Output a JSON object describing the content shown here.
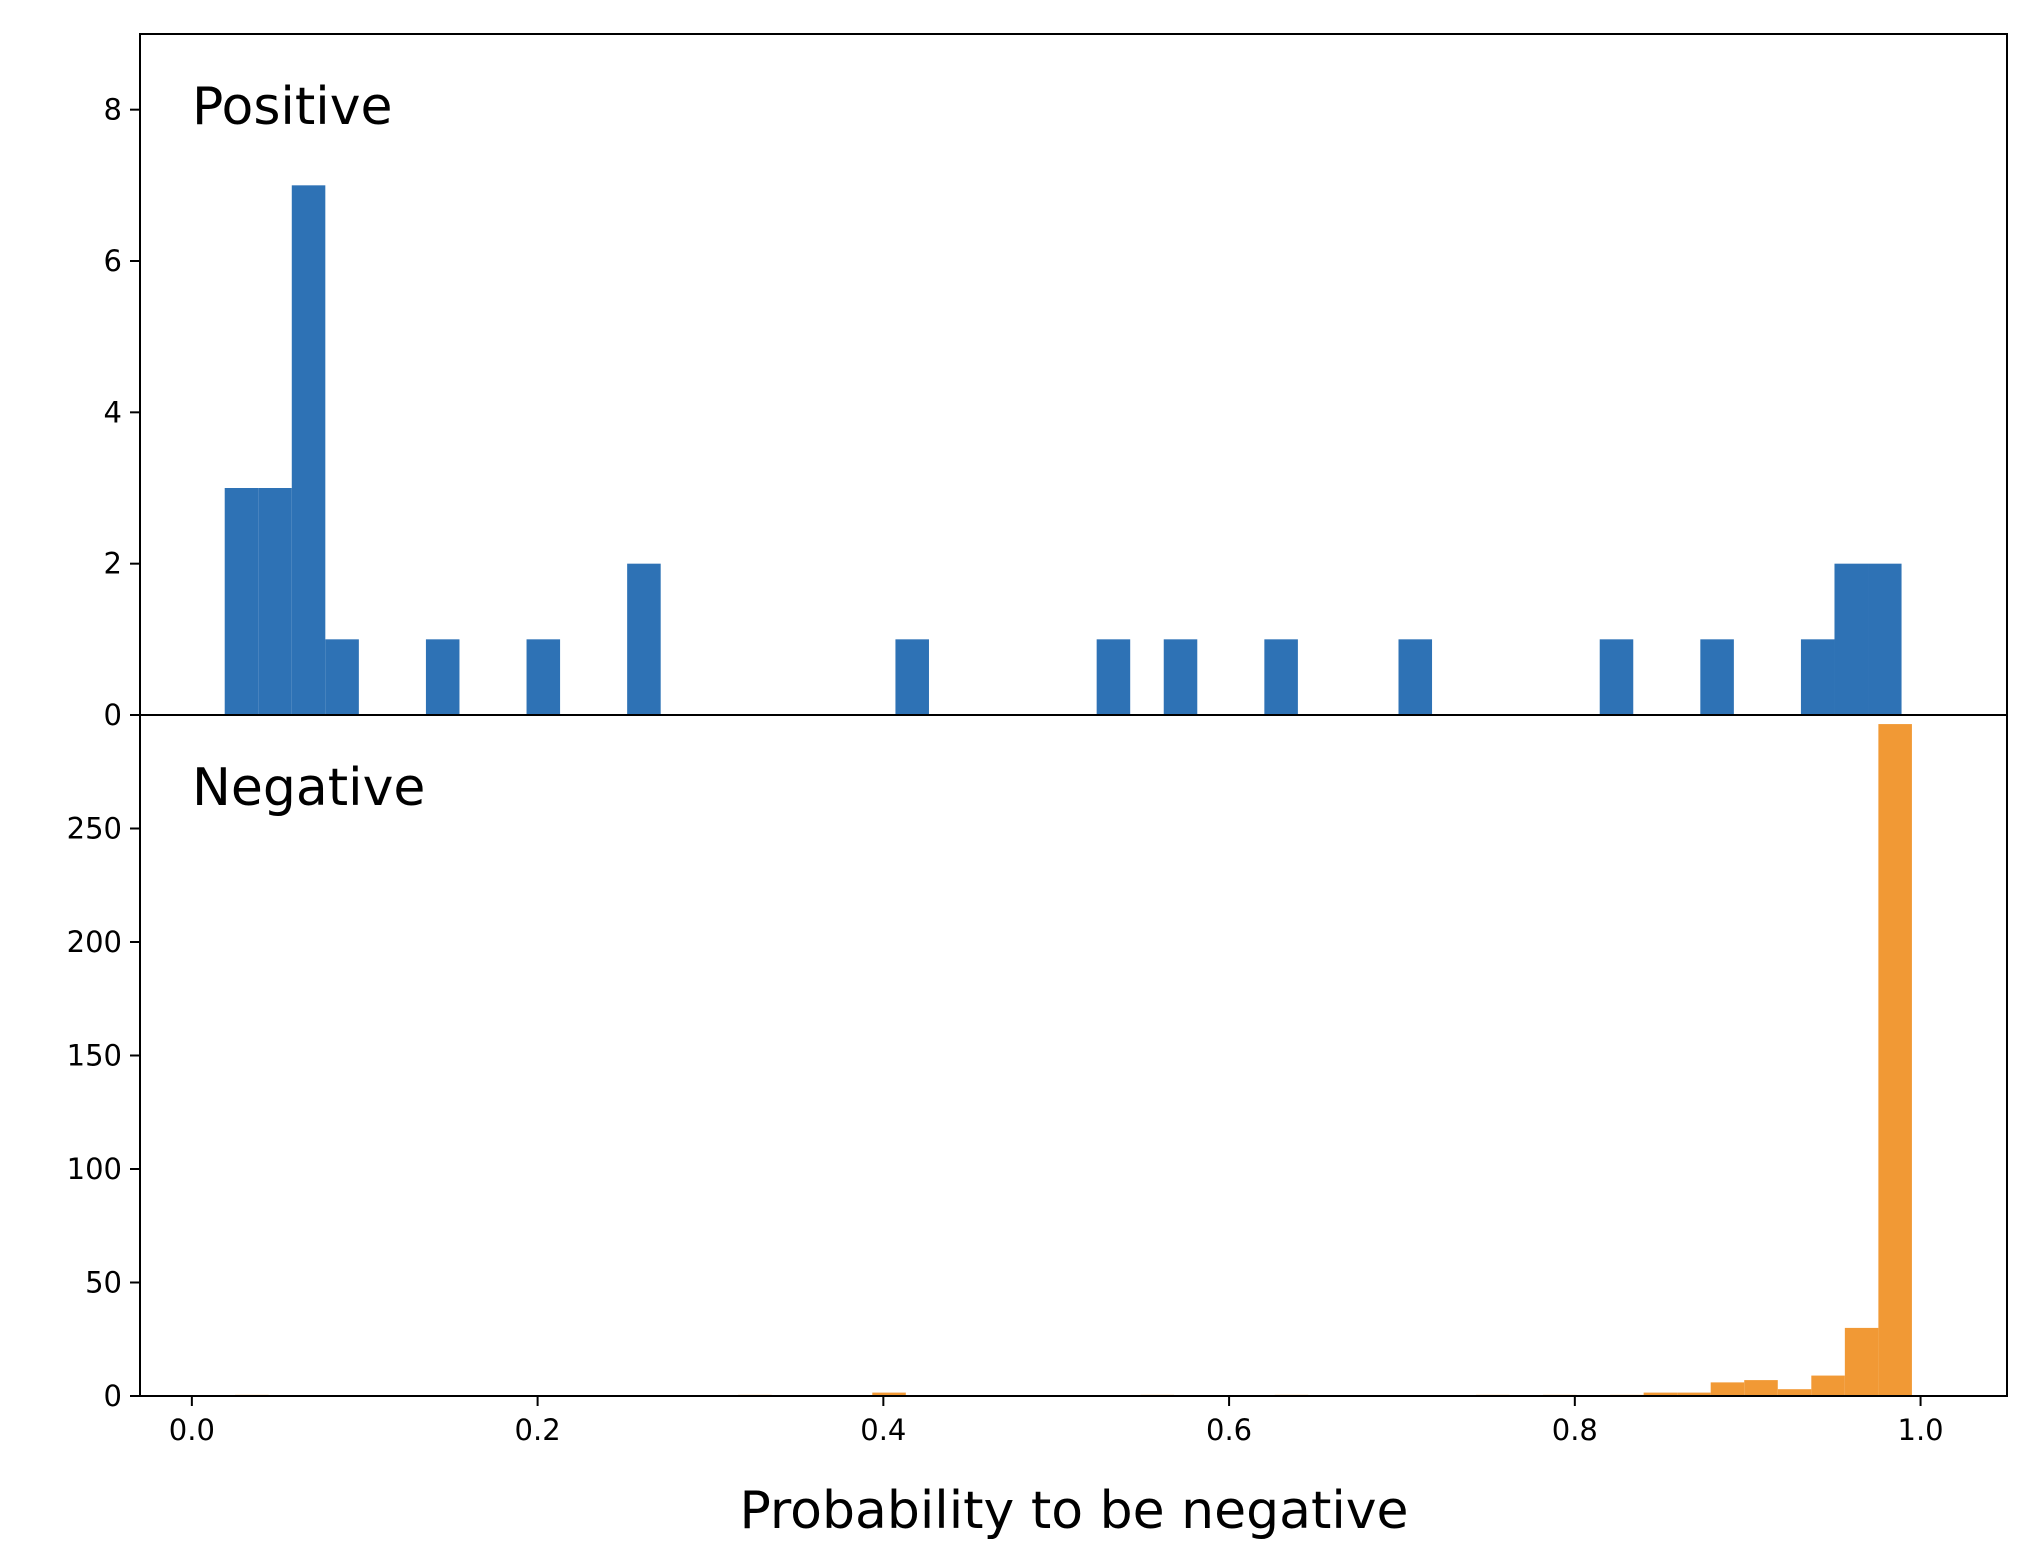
{
  "chart_data": {
    "type": "bar",
    "subtype": "histogram",
    "xlabel": "Probability to be negative",
    "xlim": [
      -0.03,
      1.05
    ],
    "x_ticks": [
      "0.0",
      "0.2",
      "0.4",
      "0.6",
      "0.8",
      "1.0"
    ],
    "bin_width": 0.0194,
    "panels": [
      {
        "label": "Positive",
        "color": "#2e72b5",
        "ylim": [
          0,
          9
        ],
        "y_ticks": [
          "0",
          "2",
          "4",
          "6",
          "8"
        ],
        "bins": [
          {
            "x0": 0.019,
            "value": 3
          },
          {
            "x0": 0.0384,
            "value": 3
          },
          {
            "x0": 0.0578,
            "value": 7
          },
          {
            "x0": 0.0772,
            "value": 1
          },
          {
            "x0": 0.1354,
            "value": 1
          },
          {
            "x0": 0.1936,
            "value": 1
          },
          {
            "x0": 0.2518,
            "value": 2
          },
          {
            "x0": 0.407,
            "value": 1
          },
          {
            "x0": 0.5234,
            "value": 1
          },
          {
            "x0": 0.5622,
            "value": 1
          },
          {
            "x0": 0.6204,
            "value": 1
          },
          {
            "x0": 0.698,
            "value": 1
          },
          {
            "x0": 0.8144,
            "value": 1
          },
          {
            "x0": 0.8726,
            "value": 1
          },
          {
            "x0": 0.9308,
            "value": 1
          },
          {
            "x0": 0.9502,
            "value": 2
          },
          {
            "x0": 0.9696,
            "value": 2
          }
        ]
      },
      {
        "label": "Negative",
        "color": "#f19935",
        "ylim": [
          0,
          300
        ],
        "y_ticks": [
          "0",
          "50",
          "100",
          "150",
          "200",
          "250"
        ],
        "bins": [
          {
            "x0": 0.025,
            "value": 0.5
          },
          {
            "x0": 0.316,
            "value": 0.5
          },
          {
            "x0": 0.3936,
            "value": 1.5
          },
          {
            "x0": 0.5488,
            "value": 0.5
          },
          {
            "x0": 0.6264,
            "value": 0.5
          },
          {
            "x0": 0.7428,
            "value": 0.5
          },
          {
            "x0": 0.7816,
            "value": 0.5
          },
          {
            "x0": 0.8204,
            "value": 0.5
          },
          {
            "x0": 0.8398,
            "value": 1.5
          },
          {
            "x0": 0.8592,
            "value": 1.5
          },
          {
            "x0": 0.8786,
            "value": 6
          },
          {
            "x0": 0.898,
            "value": 7
          },
          {
            "x0": 0.9174,
            "value": 3
          },
          {
            "x0": 0.9368,
            "value": 9
          },
          {
            "x0": 0.9562,
            "value": 30
          },
          {
            "x0": 0.9756,
            "value": 296
          }
        ]
      }
    ]
  }
}
